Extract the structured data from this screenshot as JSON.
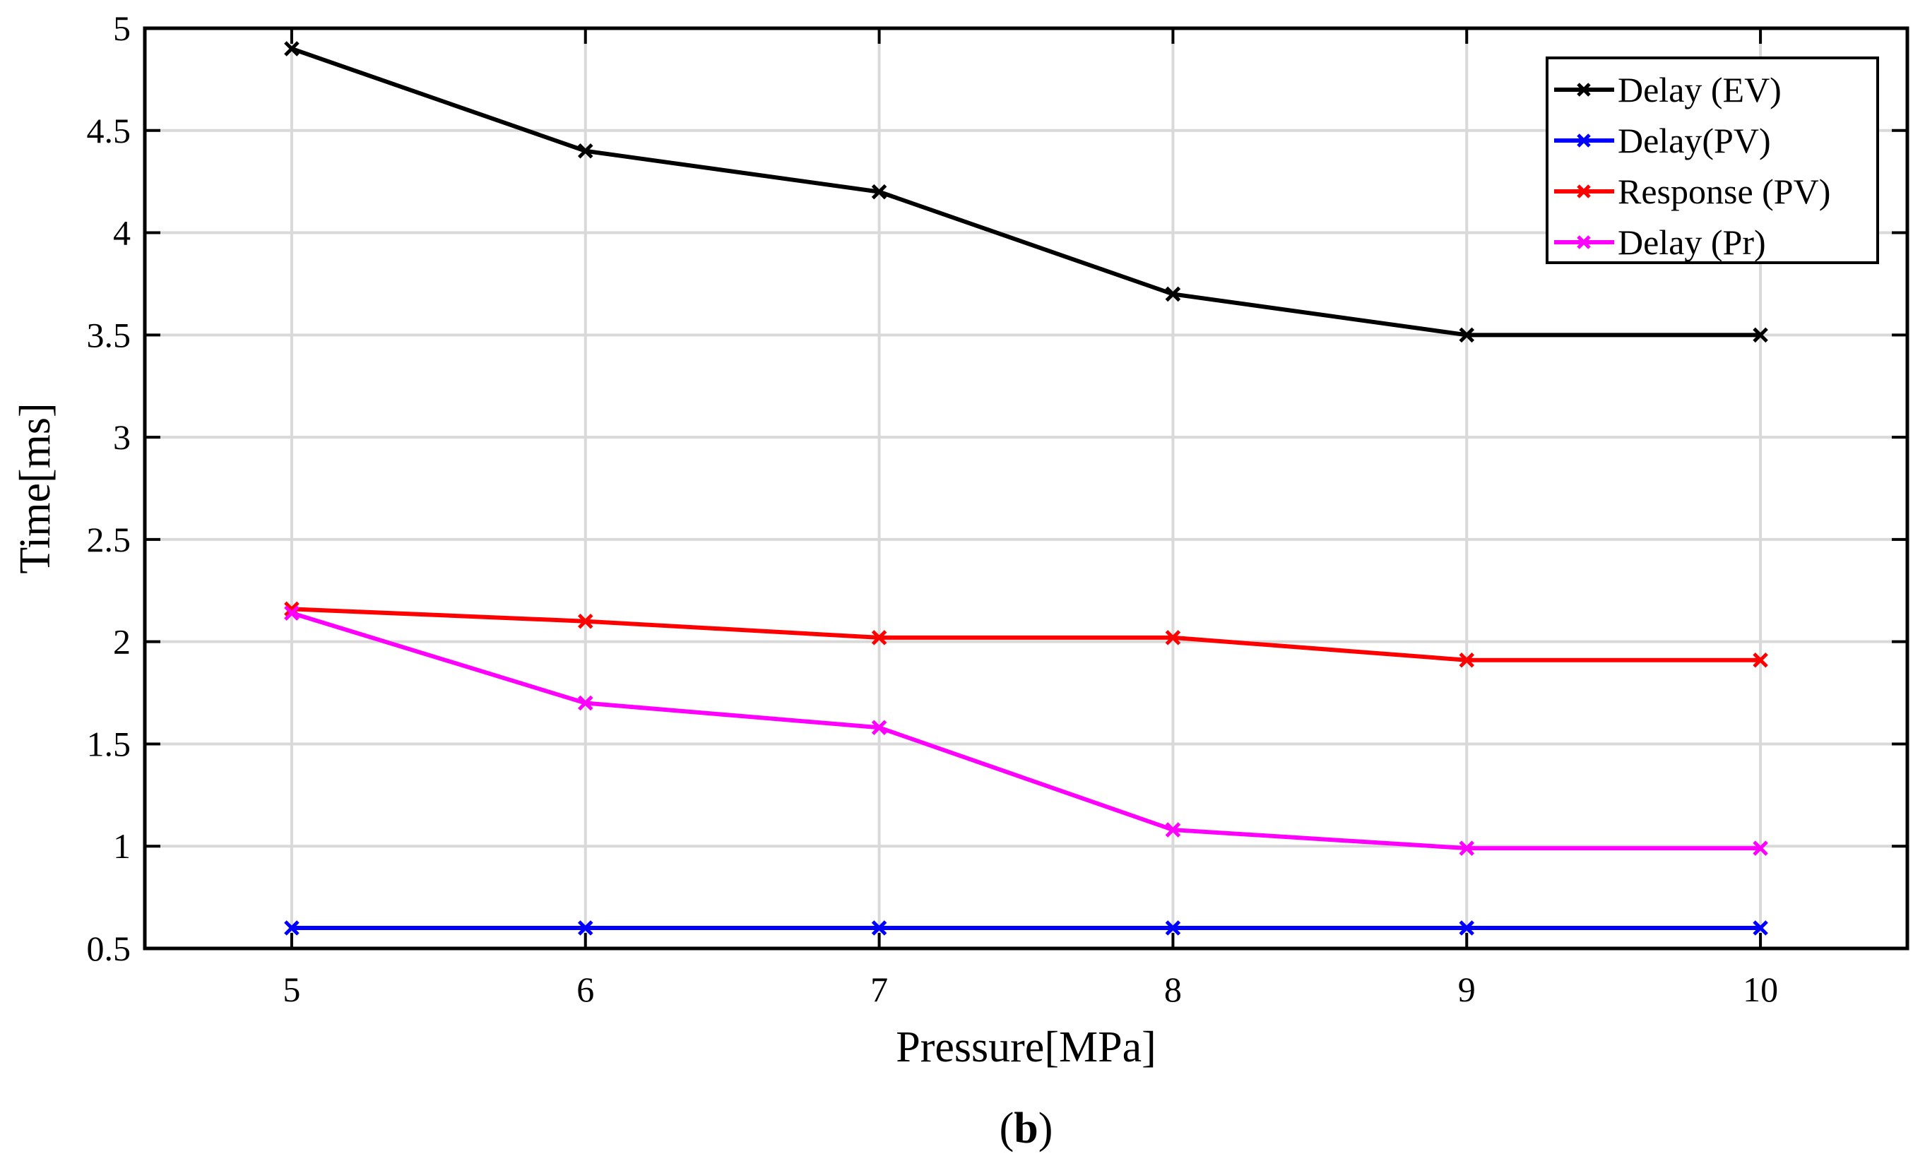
{
  "chart_data": {
    "type": "line",
    "xlabel": "Pressure[MPa]",
    "ylabel": "Time[ms]",
    "xlim": [
      4.5,
      10.5
    ],
    "ylim": [
      0.5,
      5
    ],
    "xticks": [
      5,
      6,
      7,
      8,
      9,
      10
    ],
    "yticks": [
      0.5,
      1,
      1.5,
      2,
      2.5,
      3,
      3.5,
      4,
      4.5,
      5
    ],
    "xtick_labels": [
      "5",
      "6",
      "7",
      "8",
      "9",
      "10"
    ],
    "ytick_labels": [
      "0.5",
      "1",
      "1.5",
      "2",
      "2.5",
      "3",
      "3.5",
      "4",
      "4.5",
      "5"
    ],
    "grid": true,
    "legend_position": "top-right",
    "panel_label": "b",
    "x": [
      5,
      6,
      7,
      8,
      9,
      10
    ],
    "series": [
      {
        "name": "Delay (EV)",
        "color": "#000000",
        "marker": "x",
        "values": [
          4.9,
          4.4,
          4.2,
          3.7,
          3.5,
          3.5
        ]
      },
      {
        "name": "Delay(PV)",
        "color": "#0000ff",
        "marker": "x",
        "values": [
          0.6,
          0.6,
          0.6,
          0.6,
          0.6,
          0.6
        ]
      },
      {
        "name": "Response (PV)",
        "color": "#ff0000",
        "marker": "x",
        "values": [
          2.16,
          2.1,
          2.02,
          2.02,
          1.91,
          1.91
        ]
      },
      {
        "name": "Delay (Pr)",
        "color": "#ff00ff",
        "marker": "x",
        "values": [
          2.14,
          1.7,
          1.58,
          1.08,
          0.99,
          0.99
        ]
      }
    ]
  }
}
